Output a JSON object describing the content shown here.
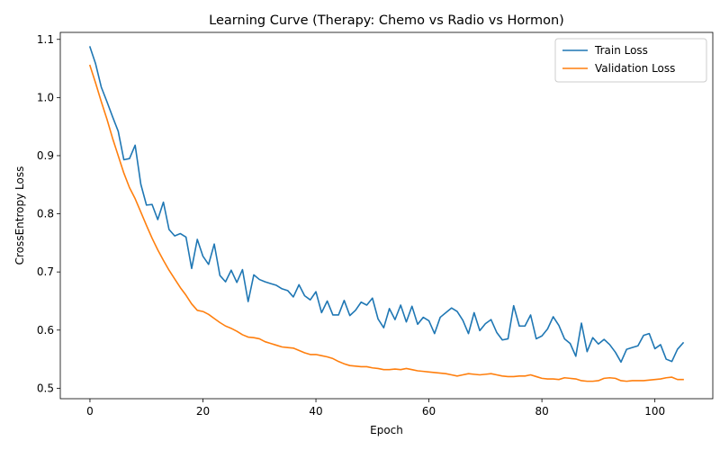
{
  "chart_data": {
    "type": "line",
    "title": "Learning Curve (Therapy: Chemo vs Radio vs Hormon)",
    "xlabel": "Epoch",
    "ylabel": "CrossEntropy Loss",
    "xlim": [
      -5.25,
      110.25
    ],
    "ylim": [
      0.482,
      1.112
    ],
    "xticks": [
      0,
      20,
      40,
      60,
      80,
      100
    ],
    "yticks": [
      0.5,
      0.6,
      0.7,
      0.8,
      0.9,
      1.0,
      1.1
    ],
    "ytick_labels": [
      "0.5",
      "0.6",
      "0.7",
      "0.8",
      "0.9",
      "1.0",
      "1.1"
    ],
    "grid": false,
    "legend_position": "top-right",
    "series": [
      {
        "name": "Train Loss",
        "color": "#1f77b4",
        "x": [
          0,
          1,
          2,
          3,
          4,
          5,
          6,
          7,
          8,
          9,
          10,
          11,
          12,
          13,
          14,
          15,
          16,
          17,
          18,
          19,
          20,
          21,
          22,
          23,
          24,
          25,
          26,
          27,
          28,
          29,
          30,
          31,
          32,
          33,
          34,
          35,
          36,
          37,
          38,
          39,
          40,
          41,
          42,
          43,
          44,
          45,
          46,
          47,
          48,
          49,
          50,
          51,
          52,
          53,
          54,
          55,
          56,
          57,
          58,
          59,
          60,
          61,
          62,
          63,
          64,
          65,
          66,
          67,
          68,
          69,
          70,
          71,
          72,
          73,
          74,
          75,
          76,
          77,
          78,
          79,
          80,
          81,
          82,
          83,
          84,
          85,
          86,
          87,
          88,
          89,
          90,
          91,
          92,
          93,
          94,
          95,
          96,
          97,
          98,
          99,
          100,
          101,
          102,
          103,
          104,
          105
        ],
        "y": [
          1.087,
          1.058,
          1.018,
          0.993,
          0.967,
          0.942,
          0.893,
          0.895,
          0.918,
          0.851,
          0.815,
          0.816,
          0.79,
          0.82,
          0.773,
          0.762,
          0.766,
          0.76,
          0.706,
          0.756,
          0.727,
          0.713,
          0.748,
          0.694,
          0.683,
          0.703,
          0.682,
          0.704,
          0.649,
          0.695,
          0.687,
          0.683,
          0.68,
          0.677,
          0.671,
          0.668,
          0.657,
          0.678,
          0.659,
          0.652,
          0.666,
          0.63,
          0.65,
          0.626,
          0.626,
          0.651,
          0.625,
          0.634,
          0.648,
          0.643,
          0.655,
          0.619,
          0.604,
          0.637,
          0.618,
          0.643,
          0.614,
          0.641,
          0.61,
          0.622,
          0.616,
          0.594,
          0.622,
          0.63,
          0.638,
          0.632,
          0.617,
          0.594,
          0.63,
          0.599,
          0.611,
          0.618,
          0.596,
          0.583,
          0.585,
          0.642,
          0.607,
          0.607,
          0.626,
          0.585,
          0.59,
          0.602,
          0.623,
          0.608,
          0.585,
          0.577,
          0.555,
          0.612,
          0.563,
          0.587,
          0.576,
          0.584,
          0.575,
          0.562,
          0.545,
          0.567,
          0.57,
          0.573,
          0.591,
          0.594,
          0.568,
          0.575,
          0.55,
          0.546,
          0.567,
          0.578
        ]
      },
      {
        "name": "Validation Loss",
        "color": "#ff7f0e",
        "x": [
          0,
          1,
          2,
          3,
          4,
          5,
          6,
          7,
          8,
          9,
          10,
          11,
          12,
          13,
          14,
          15,
          16,
          17,
          18,
          19,
          20,
          21,
          22,
          23,
          24,
          25,
          26,
          27,
          28,
          29,
          30,
          31,
          32,
          33,
          34,
          35,
          36,
          37,
          38,
          39,
          40,
          41,
          42,
          43,
          44,
          45,
          46,
          47,
          48,
          49,
          50,
          51,
          52,
          53,
          54,
          55,
          56,
          57,
          58,
          59,
          60,
          61,
          62,
          63,
          64,
          65,
          66,
          67,
          68,
          69,
          70,
          71,
          72,
          73,
          74,
          75,
          76,
          77,
          78,
          79,
          80,
          81,
          82,
          83,
          84,
          85,
          86,
          87,
          88,
          89,
          90,
          91,
          92,
          93,
          94,
          95,
          96,
          97,
          98,
          99,
          100,
          101,
          102,
          103,
          104,
          105
        ],
        "y": [
          1.055,
          1.025,
          0.993,
          0.963,
          0.93,
          0.9,
          0.87,
          0.845,
          0.826,
          0.803,
          0.78,
          0.758,
          0.738,
          0.72,
          0.703,
          0.688,
          0.673,
          0.66,
          0.645,
          0.634,
          0.632,
          0.627,
          0.62,
          0.613,
          0.607,
          0.603,
          0.598,
          0.592,
          0.588,
          0.587,
          0.585,
          0.58,
          0.577,
          0.574,
          0.571,
          0.57,
          0.569,
          0.565,
          0.561,
          0.558,
          0.558,
          0.556,
          0.554,
          0.551,
          0.546,
          0.542,
          0.539,
          0.538,
          0.537,
          0.537,
          0.535,
          0.534,
          0.532,
          0.532,
          0.533,
          0.532,
          0.534,
          0.532,
          0.53,
          0.529,
          0.528,
          0.527,
          0.526,
          0.525,
          0.523,
          0.521,
          0.523,
          0.525,
          0.524,
          0.523,
          0.524,
          0.525,
          0.523,
          0.521,
          0.52,
          0.52,
          0.521,
          0.521,
          0.523,
          0.52,
          0.517,
          0.516,
          0.516,
          0.515,
          0.518,
          0.517,
          0.516,
          0.513,
          0.512,
          0.512,
          0.513,
          0.517,
          0.518,
          0.517,
          0.513,
          0.512,
          0.513,
          0.513,
          0.513,
          0.514,
          0.515,
          0.516,
          0.518,
          0.519,
          0.515,
          0.515
        ]
      }
    ]
  }
}
